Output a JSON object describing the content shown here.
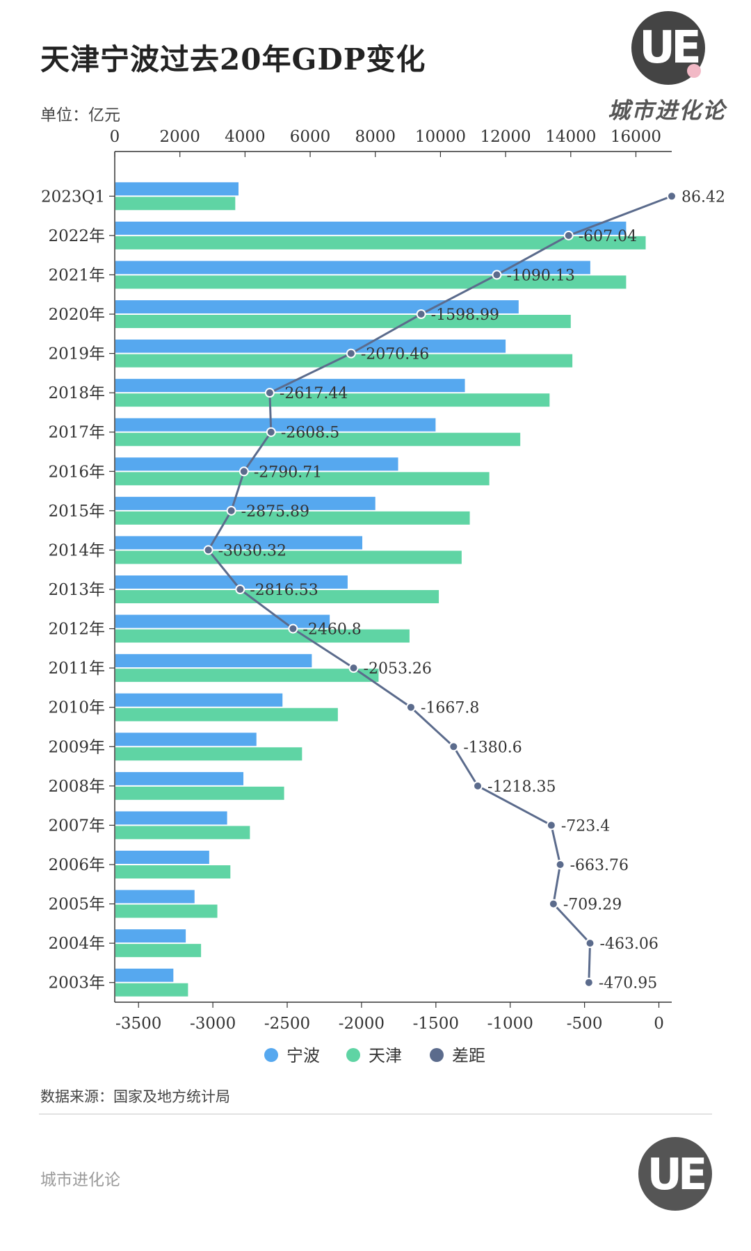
{
  "header": {
    "title": "天津宁波过去20年GDP变化",
    "unit": "单位：亿元",
    "brand_logo_text": "UE",
    "brand_name": "城市进化论"
  },
  "footer": {
    "source": "数据来源：国家及地方统计局",
    "brand": "城市进化论",
    "logo_text": "UE"
  },
  "colors": {
    "ningbo": "#56a8ef",
    "tianjin": "#5fd4a4",
    "gap": "#5b6b8c"
  },
  "chart_data": {
    "type": "bar",
    "orientation": "horizontal",
    "title": "天津宁波过去20年GDP变化",
    "categories": [
      "2023Q1",
      "2022年",
      "2021年",
      "2020年",
      "2019年",
      "2018年",
      "2017年",
      "2016年",
      "2015年",
      "2014年",
      "2013年",
      "2012年",
      "2011年",
      "2010年",
      "2009年",
      "2008年",
      "2007年",
      "2006年",
      "2005年",
      "2004年",
      "2003年"
    ],
    "series": [
      {
        "name": "宁波",
        "type": "bar",
        "axis": "top",
        "values": [
          3800,
          15700,
          14600,
          12400,
          12000,
          10750,
          9850,
          8700,
          8000,
          7600,
          7150,
          6600,
          6050,
          5150,
          4350,
          3950,
          3450,
          2900,
          2450,
          2180,
          1800
        ]
      },
      {
        "name": "天津",
        "type": "bar",
        "axis": "top",
        "values": [
          3700,
          16300,
          15700,
          14000,
          14050,
          13350,
          12450,
          11500,
          10900,
          10650,
          9950,
          9050,
          8100,
          6850,
          5750,
          5200,
          4150,
          3550,
          3150,
          2650,
          2250
        ]
      },
      {
        "name": "差距",
        "type": "line",
        "axis": "bottom",
        "values": [
          86.42,
          -607.04,
          -1090.13,
          -1598.99,
          -2070.46,
          -2617.44,
          -2608.5,
          -2790.71,
          -2875.89,
          -3030.32,
          -2816.53,
          -2460.8,
          -2053.26,
          -1667.8,
          -1380.6,
          -1218.35,
          -723.4,
          -663.76,
          -709.29,
          -463.06,
          -470.95
        ],
        "labels": [
          "86.42",
          "-607.04",
          "-1090.13",
          "-1598.99",
          "-2070.46",
          "-2617.44",
          "-2608.5",
          "-2790.71",
          "-2875.89",
          "-3030.32",
          "-2816.53",
          "-2460.8",
          "-2053.26",
          "-1667.8",
          "-1380.6",
          "-1218.35",
          "-723.4",
          "-663.76",
          "-709.29",
          "-463.06",
          "-470.95"
        ]
      }
    ],
    "top_axis": {
      "min": 0,
      "max": 17100,
      "ticks": [
        "0",
        "2000",
        "4000",
        "6000",
        "8000",
        "10000",
        "12000",
        "14000",
        "16000"
      ],
      "tick_values": [
        0,
        2000,
        4000,
        6000,
        8000,
        10000,
        12000,
        14000,
        16000
      ]
    },
    "bottom_axis": {
      "min": -3660,
      "max": 86.42,
      "ticks": [
        "-3500",
        "-3000",
        "-2500",
        "-2000",
        "-1500",
        "-1000",
        "-500",
        "0"
      ],
      "tick_values": [
        -3500,
        -3000,
        -2500,
        -2000,
        -1500,
        -1000,
        -500,
        0
      ]
    },
    "legend": {
      "placement": "bottom-center",
      "items": [
        "宁波",
        "天津",
        "差距"
      ]
    },
    "grid": false
  }
}
